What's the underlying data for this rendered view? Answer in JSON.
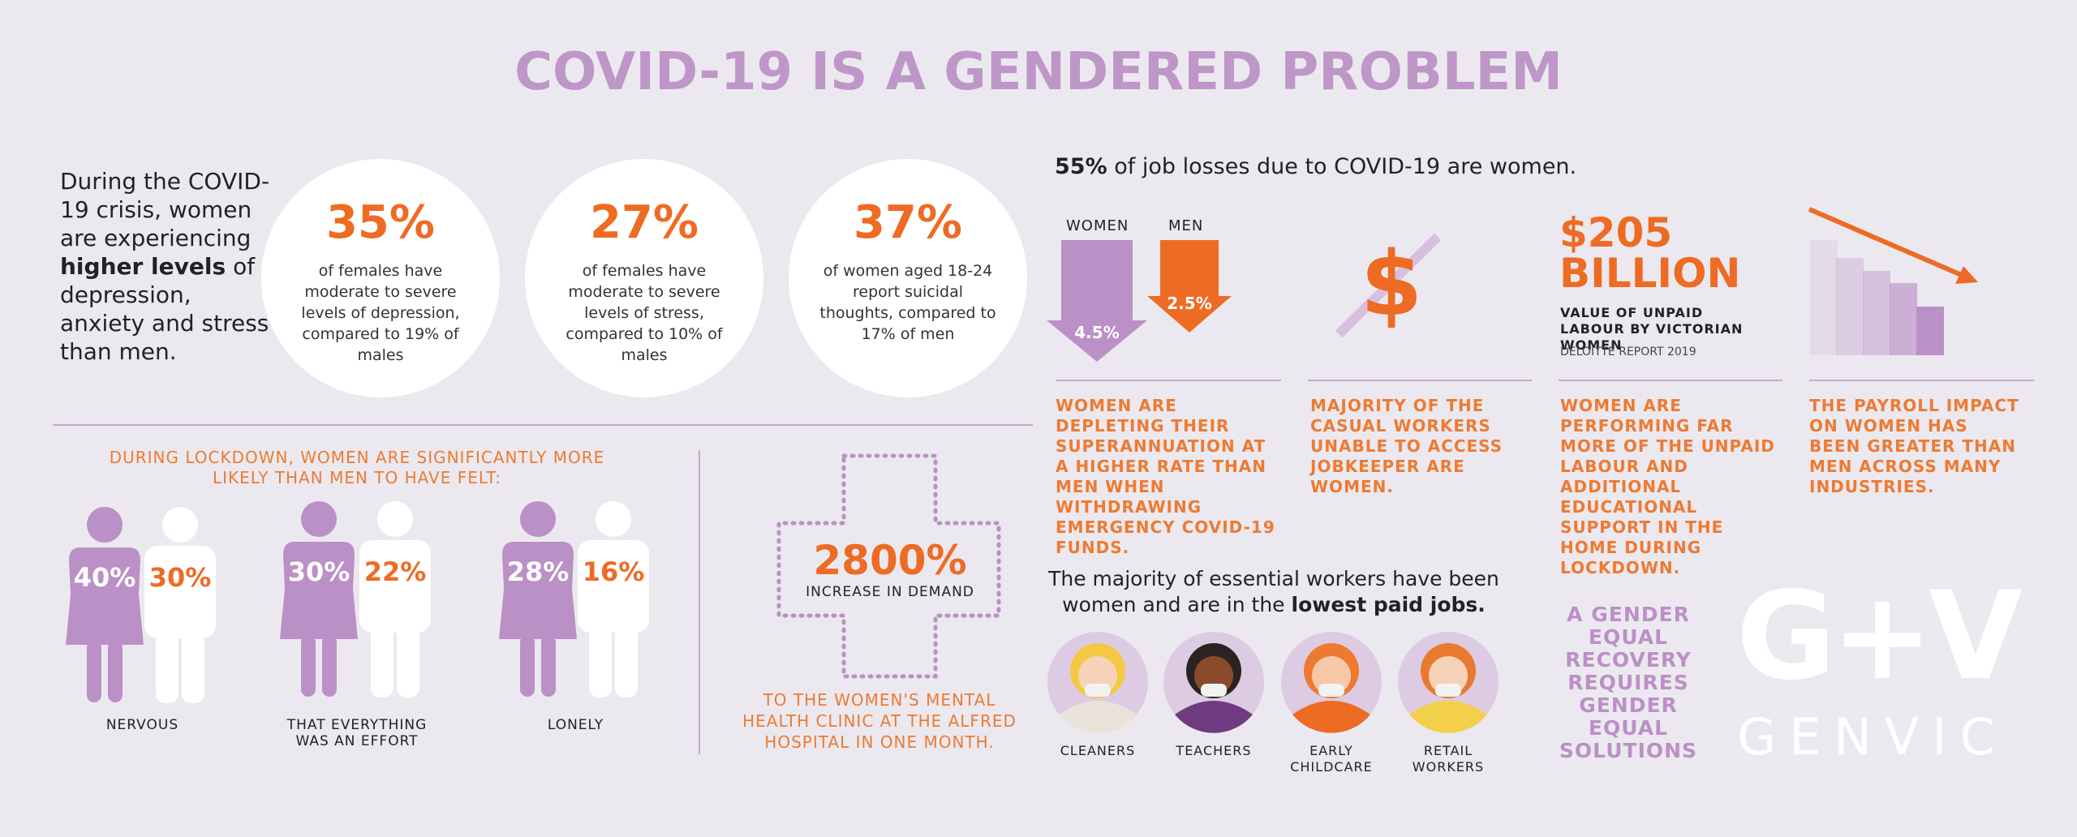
{
  "title": "COVID-19 IS A GENDERED PROBLEM",
  "intro": {
    "lead": "During the COVID-19 crisis, women are experiencing",
    "emphasis": "higher levels",
    "tail": "of depression, anxiety and stress than men."
  },
  "stats": [
    {
      "value": "35%",
      "text": "of females have moderate to severe levels of depression, compared to 19% of males"
    },
    {
      "value": "27%",
      "text": "of females have moderate to severe levels of stress, compared to 10% of males"
    },
    {
      "value": "37%",
      "text": "of women aged 18-24 report suicidal thoughts, compared to 17% of men"
    }
  ],
  "lockdown": {
    "heading": "DURING LOCKDOWN, WOMEN ARE SIGNIFICANTLY MORE LIKELY THAN MEN TO HAVE FELT:",
    "items": [
      {
        "women": "40%",
        "men": "30%",
        "label": "NERVOUS"
      },
      {
        "women": "30%",
        "men": "22%",
        "label": "THAT EVERYTHING WAS AN EFFORT"
      },
      {
        "women": "28%",
        "men": "16%",
        "label": "LONELY"
      }
    ]
  },
  "clinic": {
    "value": "2800%",
    "label": "INCREASE IN DEMAND",
    "caption": "TO THE WOMEN'S MENTAL HEALTH CLINIC AT THE ALFRED HOSPITAL IN ONE MONTH."
  },
  "job_losses": {
    "value": "55%",
    "text": "of job losses due to COVID-19 are women."
  },
  "super": {
    "women_label": "WOMEN",
    "men_label": "MEN",
    "women": "4.5%",
    "men": "2.5%",
    "caption": "WOMEN ARE DEPLETING THEIR SUPERANNUATION AT A HIGHER RATE THAN MEN WHEN WITHDRAWING EMERGENCY COVID-19 FUNDS."
  },
  "casual": {
    "symbol": "$",
    "caption": "MAJORITY OF THE CASUAL WORKERS UNABLE TO ACCESS JOBKEEPER ARE WOMEN."
  },
  "unpaid": {
    "value": "$205 BILLION",
    "label": "VALUE OF UNPAID LABOUR BY VICTORIAN WOMEN",
    "source": "DELOITTE REPORT 2019",
    "caption": "WOMEN ARE PERFORMING FAR MORE OF THE UNPAID LABOUR AND ADDITIONAL EDUCATIONAL SUPPORT IN THE HOME DURING LOCKDOWN."
  },
  "payroll": {
    "caption": "THE PAYROLL IMPACT ON WOMEN HAS BEEN GREATER THAN MEN ACROSS MANY INDUSTRIES."
  },
  "essential": {
    "lead": "The majority of essential workers have been women and are in the",
    "emphasis": "lowest paid jobs.",
    "workers": [
      "CLEANERS",
      "TEACHERS",
      "EARLY CHILDCARE",
      "RETAIL WORKERS"
    ]
  },
  "slogan": "A GENDER EQUAL RECOVERY REQUIRES GENDER EQUAL SOLUTIONS",
  "logo": {
    "mark": "G+V",
    "name": "GENVIC"
  }
}
